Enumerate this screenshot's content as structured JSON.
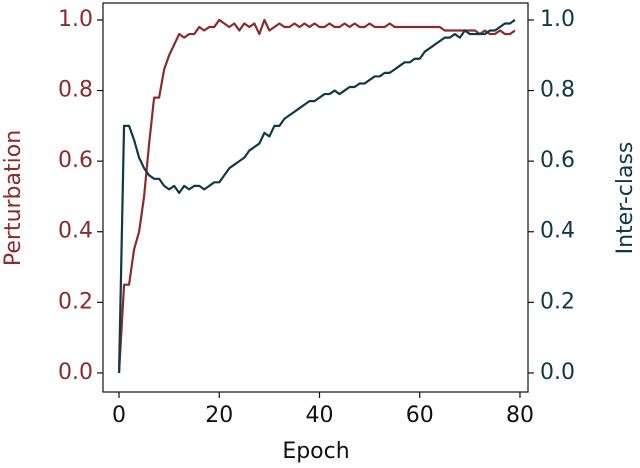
{
  "chart_data": {
    "type": "line",
    "xlabel": "Epoch",
    "ylabel": "Perturbation",
    "y2label": "Inter-class",
    "x": [
      0,
      1,
      2,
      3,
      4,
      5,
      6,
      7,
      8,
      9,
      10,
      11,
      12,
      13,
      14,
      15,
      16,
      17,
      18,
      19,
      20,
      21,
      22,
      23,
      24,
      25,
      26,
      27,
      28,
      29,
      30,
      31,
      32,
      33,
      34,
      35,
      36,
      37,
      38,
      39,
      40,
      41,
      42,
      43,
      44,
      45,
      46,
      47,
      48,
      49,
      50,
      51,
      52,
      53,
      54,
      55,
      56,
      57,
      58,
      59,
      60,
      61,
      62,
      63,
      64,
      65,
      66,
      67,
      68,
      69,
      70,
      71,
      72,
      73,
      74,
      75,
      76,
      77,
      78,
      79
    ],
    "series": [
      {
        "name": "Perturbation",
        "color": "#8b2b2e",
        "axis": "y",
        "values": [
          0.0,
          0.25,
          0.25,
          0.35,
          0.4,
          0.5,
          0.65,
          0.78,
          0.78,
          0.86,
          0.9,
          0.93,
          0.96,
          0.95,
          0.96,
          0.96,
          0.98,
          0.97,
          0.98,
          0.98,
          1.0,
          0.99,
          0.98,
          0.99,
          0.97,
          0.99,
          0.98,
          0.99,
          0.96,
          1.0,
          0.97,
          0.98,
          0.99,
          0.98,
          0.98,
          0.99,
          0.98,
          0.99,
          0.98,
          0.99,
          0.98,
          0.98,
          0.99,
          0.98,
          0.98,
          0.99,
          0.98,
          0.99,
          0.98,
          0.98,
          0.99,
          0.98,
          0.98,
          0.98,
          0.99,
          0.98,
          0.98,
          0.98,
          0.98,
          0.98,
          0.98,
          0.98,
          0.98,
          0.98,
          0.98,
          0.97,
          0.97,
          0.97,
          0.97,
          0.97,
          0.97,
          0.97,
          0.96,
          0.97,
          0.96,
          0.96,
          0.97,
          0.96,
          0.96,
          0.97
        ]
      },
      {
        "name": "Inter-class",
        "color": "#0e3a48",
        "axis": "y2",
        "values": [
          0.0,
          0.7,
          0.7,
          0.66,
          0.61,
          0.58,
          0.56,
          0.55,
          0.55,
          0.53,
          0.52,
          0.53,
          0.51,
          0.53,
          0.52,
          0.53,
          0.53,
          0.52,
          0.53,
          0.54,
          0.54,
          0.56,
          0.58,
          0.59,
          0.6,
          0.61,
          0.63,
          0.64,
          0.65,
          0.68,
          0.67,
          0.7,
          0.7,
          0.72,
          0.73,
          0.74,
          0.75,
          0.76,
          0.77,
          0.77,
          0.78,
          0.79,
          0.79,
          0.8,
          0.79,
          0.8,
          0.81,
          0.81,
          0.82,
          0.82,
          0.83,
          0.84,
          0.84,
          0.85,
          0.85,
          0.86,
          0.87,
          0.88,
          0.88,
          0.89,
          0.89,
          0.91,
          0.92,
          0.93,
          0.94,
          0.95,
          0.95,
          0.96,
          0.95,
          0.97,
          0.96,
          0.96,
          0.96,
          0.96,
          0.97,
          0.97,
          0.98,
          0.99,
          0.99,
          1.0
        ]
      }
    ],
    "xlim": [
      -3.2,
      81.6
    ],
    "xticks": [
      0,
      20,
      40,
      60,
      80
    ],
    "ylim": [
      -0.054,
      1.048
    ],
    "yticks": [
      {
        "value": 0,
        "label": "0.0"
      },
      0.2,
      0.4,
      0.6,
      0.8,
      {
        "value": 1,
        "label": "1.0"
      }
    ],
    "y2lim": [
      -0.054,
      1.048
    ],
    "y2ticks": [
      {
        "value": 0,
        "label": "0.0"
      },
      0.2,
      0.4,
      0.6,
      0.8,
      {
        "value": 1,
        "label": "1.0"
      }
    ]
  }
}
